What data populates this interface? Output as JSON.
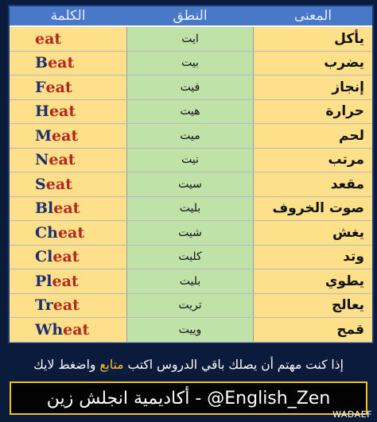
{
  "header": {
    "word": "الكلمة",
    "pronunciation": "النطق",
    "meaning": "المعنى"
  },
  "rows": [
    {
      "lead": "",
      "tail": "eat",
      "pron": "ايت",
      "meaning": "يأكل"
    },
    {
      "lead": "B",
      "tail": "eat",
      "pron": "بيت",
      "meaning": "يضرب"
    },
    {
      "lead": "F",
      "tail": "eat",
      "pron": "فيت",
      "meaning": "إنجاز"
    },
    {
      "lead": "H",
      "tail": "eat",
      "pron": "هيت",
      "meaning": "حرارة"
    },
    {
      "lead": "M",
      "tail": "eat",
      "pron": "ميت",
      "meaning": "لحم"
    },
    {
      "lead": "N",
      "tail": "eat",
      "pron": "نيت",
      "meaning": "مرتب"
    },
    {
      "lead": "S",
      "tail": "eat",
      "pron": "سيت",
      "meaning": "مقعد"
    },
    {
      "lead": "Bl",
      "tail": "eat",
      "pron": "بليت",
      "meaning": "صوت الخروف"
    },
    {
      "lead": "Ch",
      "tail": "eat",
      "pron": "شيت",
      "meaning": "يغش"
    },
    {
      "lead": "Cl",
      "tail": "eat",
      "pron": "كليت",
      "meaning": "وتد"
    },
    {
      "lead": "Pl",
      "tail": "eat",
      "pron": "بليت",
      "meaning": "يطوي"
    },
    {
      "lead": "Tr",
      "tail": "eat",
      "pron": "تريت",
      "meaning": "يعالج"
    },
    {
      "lead": "Wh",
      "tail": "eat",
      "pron": "وييت",
      "meaning": "قمح"
    }
  ],
  "footer": {
    "text_before": "إذا كنت مهتم أن يصلك باقي الدروس اكتب",
    "accent": "متابع",
    "text_after": "واضغط لايك"
  },
  "brand": "أكاديمية انجلش زين - @English_Zen",
  "watermark": "WADAEF",
  "colors": {
    "header_bg": "#4a78c8",
    "word_bg": "#ffe08a",
    "pron_bg": "#bfe2a8",
    "lead_letters": "#1e2f6e",
    "eat_letters": "#b4261e",
    "accent": "#f7c133"
  }
}
